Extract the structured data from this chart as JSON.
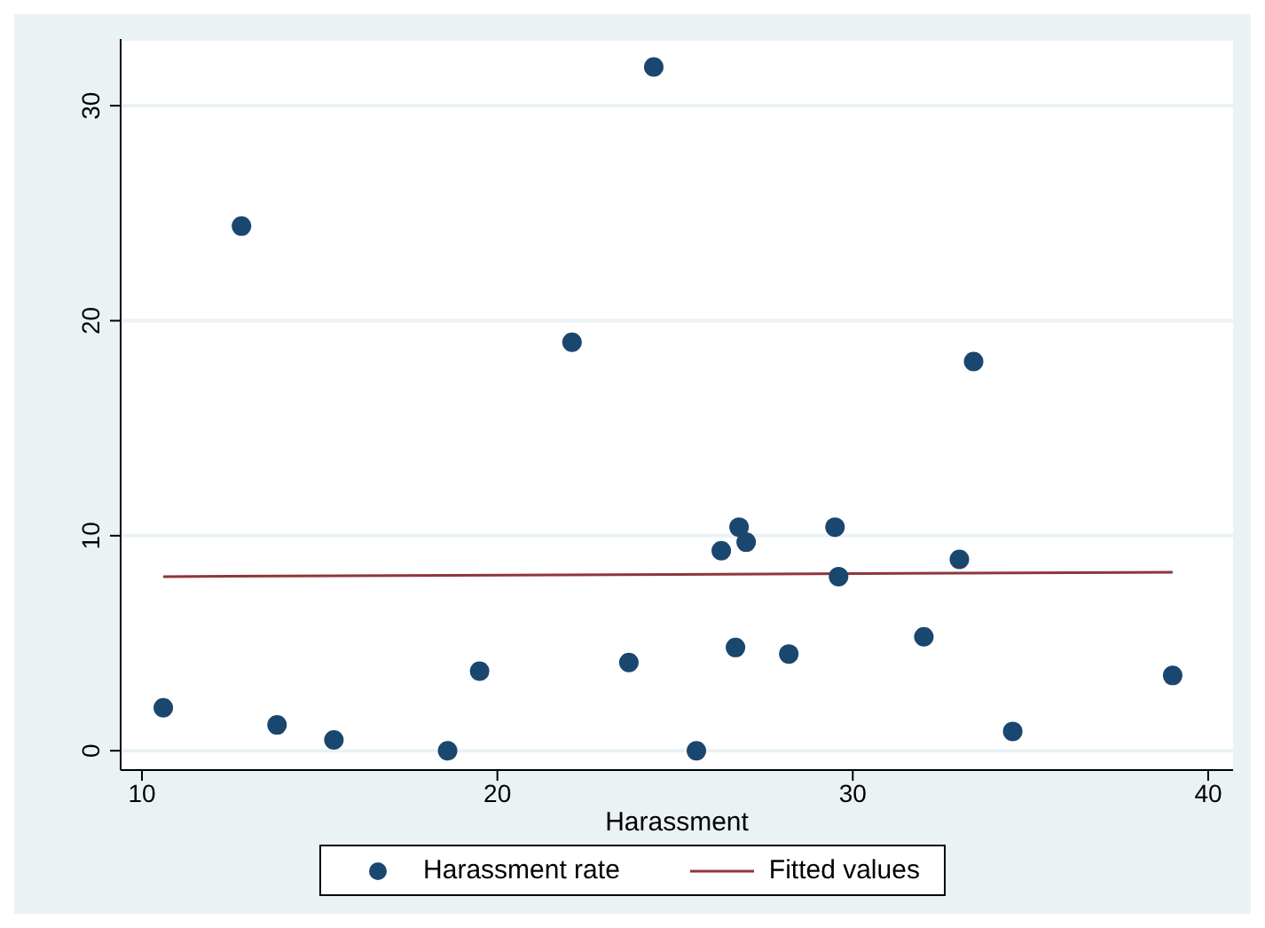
{
  "chart_data": {
    "type": "scatter",
    "xlabel": "Harassment",
    "xlim": [
      9.4,
      40.7
    ],
    "xticks": [
      10,
      20,
      30,
      40
    ],
    "ylim": [
      -0.9,
      33.1
    ],
    "yticks": [
      0,
      10,
      20,
      30
    ],
    "grid": "y",
    "legend": "bottom",
    "marker": "circle",
    "series": [
      {
        "name": "Harassment rate",
        "color": "#1a476f",
        "x": [
          10.6,
          12.8,
          13.8,
          15.4,
          18.6,
          19.5,
          22.1,
          24.4,
          23.7,
          25.6,
          26.3,
          26.7,
          26.8,
          27.0,
          28.2,
          29.5,
          29.6,
          32.0,
          33.0,
          33.4,
          34.5,
          39.0
        ],
        "values": [
          2.0,
          24.4,
          1.2,
          0.5,
          0.0,
          3.7,
          19.0,
          31.8,
          4.1,
          0.0,
          9.3,
          4.8,
          10.4,
          9.7,
          4.5,
          10.4,
          8.1,
          5.3,
          8.9,
          18.1,
          0.9,
          3.5
        ]
      },
      {
        "name": "Fitted values",
        "type": "line",
        "color": "#90353b",
        "line_style": "solid",
        "marker": "none",
        "x": [
          10.6,
          39.0
        ],
        "values": [
          8.1,
          8.3
        ]
      }
    ]
  }
}
